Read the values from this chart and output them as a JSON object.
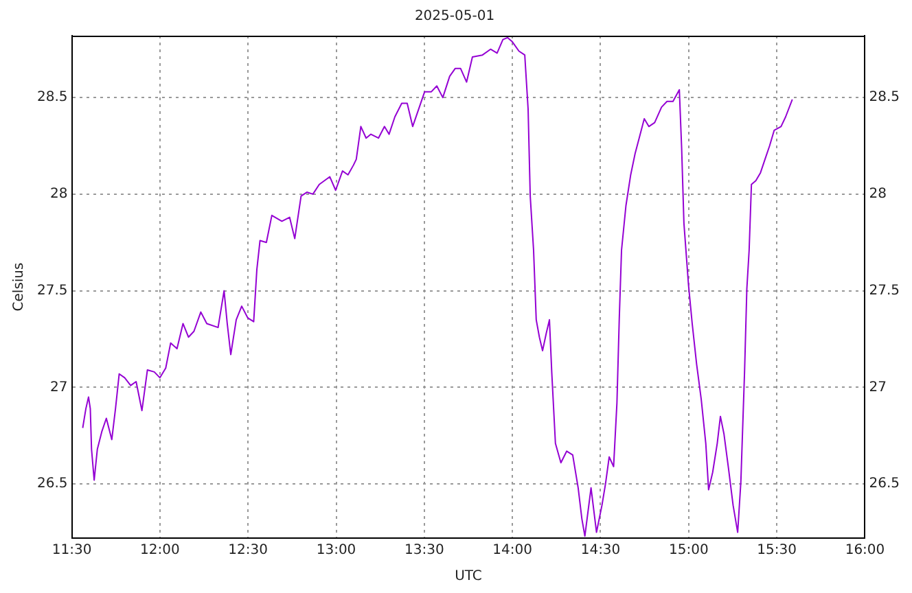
{
  "chart_data": {
    "type": "line",
    "title": "2025-05-01",
    "xlabel": "UTC",
    "ylabel": "Celsius",
    "x": [
      11.562,
      11.58,
      11.595,
      11.605,
      11.612,
      11.627,
      11.645,
      11.67,
      11.696,
      11.727,
      11.748,
      11.769,
      11.8,
      11.834,
      11.865,
      11.898,
      11.929,
      11.968,
      12.0,
      12.033,
      12.061,
      12.097,
      12.131,
      12.162,
      12.193,
      12.232,
      12.266,
      12.33,
      12.364,
      12.382,
      12.402,
      12.433,
      12.464,
      12.498,
      12.532,
      12.55,
      12.568,
      12.604,
      12.635,
      12.692,
      12.736,
      12.765,
      12.801,
      12.834,
      12.868,
      12.904,
      12.964,
      12.997,
      13.036,
      13.067,
      13.098,
      13.114,
      13.14,
      13.17,
      13.197,
      13.24,
      13.274,
      13.3,
      13.333,
      13.372,
      13.403,
      13.434,
      13.502,
      13.54,
      13.571,
      13.605,
      13.644,
      13.675,
      13.706,
      13.74,
      13.773,
      13.83,
      13.876,
      13.913,
      13.946,
      13.972,
      13.998,
      14.037,
      14.07,
      14.089,
      14.101,
      14.12,
      14.135,
      14.153,
      14.171,
      14.192,
      14.21,
      14.223,
      14.244,
      14.275,
      14.308,
      14.342,
      14.373,
      14.394,
      14.411,
      14.446,
      14.477,
      14.508,
      14.528,
      14.549,
      14.574,
      14.593,
      14.606,
      14.619,
      14.644,
      14.671,
      14.696,
      14.722,
      14.748,
      14.774,
      14.807,
      14.846,
      14.877,
      14.911,
      14.947,
      14.96,
      14.973,
      14.999,
      15.02,
      15.045,
      15.071,
      15.097,
      15.113,
      15.136,
      15.162,
      15.18,
      15.2,
      15.226,
      15.252,
      15.278,
      15.296,
      15.317,
      15.33,
      15.343,
      15.356,
      15.381,
      15.407,
      15.433,
      15.459,
      15.485,
      15.524,
      15.55,
      15.588
    ],
    "series": [
      {
        "color": "#9400d3",
        "values": [
          26.79,
          26.89,
          26.95,
          26.89,
          26.68,
          26.52,
          26.68,
          26.77,
          26.84,
          26.73,
          26.89,
          27.07,
          27.05,
          27.01,
          27.03,
          26.88,
          27.09,
          27.08,
          27.05,
          27.1,
          27.23,
          27.2,
          27.33,
          27.26,
          27.29,
          27.39,
          27.33,
          27.31,
          27.5,
          27.33,
          27.17,
          27.35,
          27.42,
          27.36,
          27.34,
          27.61,
          27.76,
          27.75,
          27.89,
          27.86,
          27.88,
          27.77,
          27.99,
          28.01,
          28.0,
          28.05,
          28.09,
          28.02,
          28.12,
          28.1,
          28.15,
          28.18,
          28.35,
          28.29,
          28.31,
          28.29,
          28.35,
          28.31,
          28.4,
          28.47,
          28.47,
          28.35,
          28.53,
          28.53,
          28.56,
          28.5,
          28.61,
          28.65,
          28.65,
          28.58,
          28.71,
          28.72,
          28.75,
          28.73,
          28.8,
          28.81,
          28.79,
          28.74,
          28.72,
          28.44,
          27.99,
          27.71,
          27.35,
          27.26,
          27.19,
          27.28,
          27.35,
          27.08,
          26.71,
          26.61,
          26.67,
          26.65,
          26.48,
          26.32,
          26.23,
          26.48,
          26.25,
          26.39,
          26.5,
          26.64,
          26.59,
          26.92,
          27.35,
          27.71,
          27.94,
          28.1,
          28.21,
          28.3,
          28.39,
          28.35,
          28.37,
          28.45,
          28.48,
          28.48,
          28.54,
          28.24,
          27.85,
          27.53,
          27.33,
          27.12,
          26.94,
          26.71,
          26.47,
          26.56,
          26.71,
          26.85,
          26.76,
          26.58,
          26.39,
          26.25,
          26.51,
          27.08,
          27.51,
          27.71,
          28.05,
          28.07,
          28.11,
          28.18,
          28.25,
          28.33,
          28.35,
          28.4,
          28.49
        ]
      }
    ],
    "xlim": [
      11.5,
      16
    ],
    "xticks": [
      {
        "value": 11.5,
        "label": "11:30"
      },
      {
        "value": 12,
        "label": "12:00"
      },
      {
        "value": 12.5,
        "label": "12:30"
      },
      {
        "value": 13,
        "label": "13:00"
      },
      {
        "value": 13.5,
        "label": "13:30"
      },
      {
        "value": 14,
        "label": "14:00"
      },
      {
        "value": 14.5,
        "label": "14:30"
      },
      {
        "value": 15,
        "label": "15:00"
      },
      {
        "value": 15.5,
        "label": "15:30"
      },
      {
        "value": 16,
        "label": "16:00"
      }
    ],
    "ylim": [
      26.22,
      28.82
    ],
    "yticks": [
      26.5,
      27,
      27.5,
      28,
      28.5
    ],
    "y2lim": [
      26.22,
      28.82
    ],
    "y2ticks": [
      26.5,
      27,
      27.5,
      28,
      28.5
    ],
    "grid": true,
    "line_style": "solid",
    "marker": "none"
  }
}
